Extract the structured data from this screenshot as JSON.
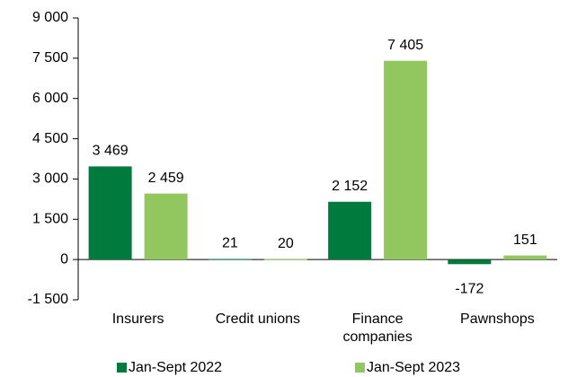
{
  "chart_data": {
    "type": "bar",
    "categories": [
      "Insurers",
      "Credit unions",
      "Finance companies",
      "Pawnshops"
    ],
    "series": [
      {
        "name": "Jan-Sept 2022",
        "color": "#007a3d",
        "values": [
          3469,
          21,
          2152,
          -172
        ],
        "value_labels": [
          "3 469",
          "21",
          "2 152",
          "-172"
        ]
      },
      {
        "name": "Jan-Sept 2023",
        "color": "#92c760",
        "values": [
          2459,
          20,
          7405,
          151
        ],
        "value_labels": [
          "2 459",
          "20",
          "7 405",
          "151"
        ]
      }
    ],
    "ylim": [
      -1500,
      9000
    ],
    "yticks": [
      {
        "value": -1500,
        "label": "-1 500"
      },
      0,
      {
        "value": 1500,
        "label": "1 500"
      },
      {
        "value": 3000,
        "label": "3 000"
      },
      {
        "value": 4500,
        "label": "4 500"
      },
      {
        "value": 6000,
        "label": "6 000"
      },
      {
        "value": 7500,
        "label": "7 500"
      },
      {
        "value": 9000,
        "label": "9 000"
      }
    ],
    "grid": false,
    "legend": "bottom"
  }
}
